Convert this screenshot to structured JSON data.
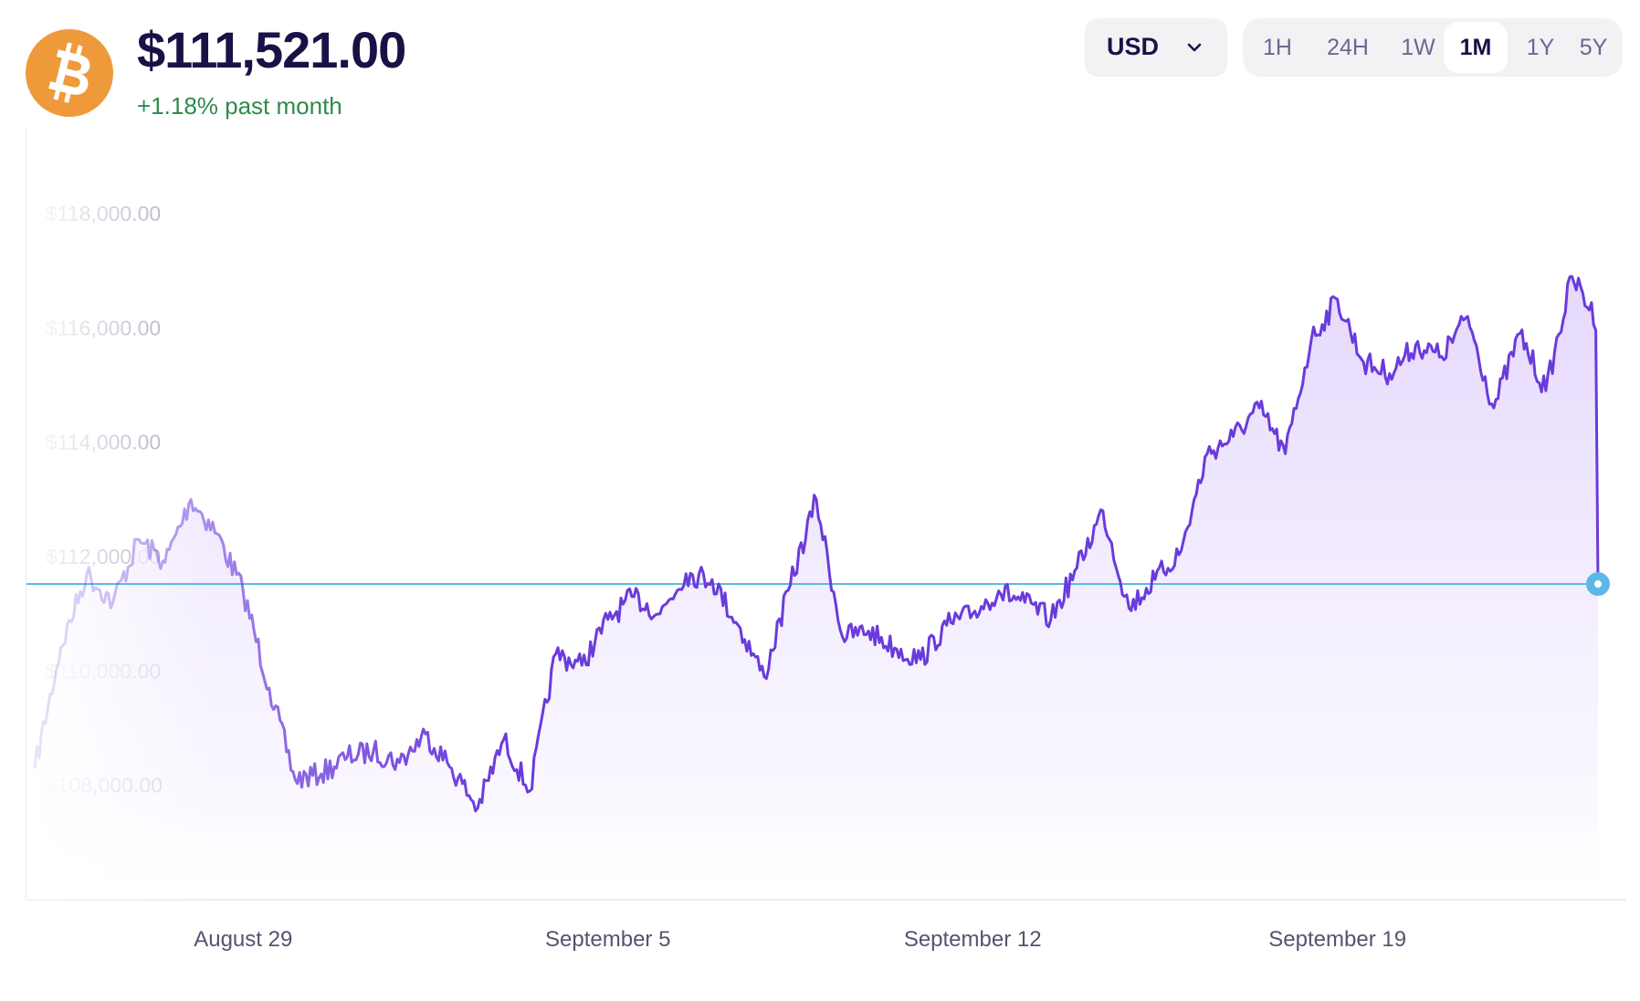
{
  "asset": {
    "icon": "bitcoin-icon",
    "price": "$111,521.00",
    "change": "+1.18% past month",
    "colors": {
      "icon": "#ee9a3a",
      "change": "#2f8a4c"
    }
  },
  "currency": {
    "selected": "USD",
    "icon": "chevron-down-icon"
  },
  "time_range": {
    "options": [
      "1H",
      "24H",
      "1W",
      "1M",
      "1Y",
      "5Y"
    ],
    "selected": "1M"
  },
  "chart_data": {
    "type": "area",
    "title": "",
    "xlabel": "",
    "ylabel": "",
    "x_ticks": [
      "August 29",
      "September 5",
      "September 12",
      "September 19"
    ],
    "y_ticks": [
      "$108,000.00",
      "$110,000.00",
      "$112,000.00",
      "$114,000.00",
      "$116,000.00",
      "$118,000.00"
    ],
    "ylim": [
      106000,
      119500
    ],
    "xlim": [
      "2025-08-25",
      "2025-09-24"
    ],
    "grid": false,
    "colors": {
      "line": "#6a3bdb",
      "fill": "#e8defd",
      "reference": "#5db8e8",
      "marker": "#5db8e8"
    },
    "series": [
      {
        "x": [
          "2025-08-25",
          "2025-08-25 12:00",
          "2025-08-26",
          "2025-08-26 12:00",
          "2025-08-27",
          "2025-08-27 12:00",
          "2025-08-28",
          "2025-08-28 12:00",
          "2025-08-29",
          "2025-08-29 12:00",
          "2025-08-30",
          "2025-08-30 12:00",
          "2025-08-31",
          "2025-08-31 12:00",
          "2025-09-01",
          "2025-09-01 12:00",
          "2025-09-02",
          "2025-09-02 12:00",
          "2025-09-03",
          "2025-09-03 12:00",
          "2025-09-04",
          "2025-09-04 12:00",
          "2025-09-05",
          "2025-09-05 12:00",
          "2025-09-06",
          "2025-09-06 12:00",
          "2025-09-07",
          "2025-09-07 12:00",
          "2025-09-08",
          "2025-09-08 12:00",
          "2025-09-09",
          "2025-09-09 12:00",
          "2025-09-10",
          "2025-09-10 12:00",
          "2025-09-11",
          "2025-09-11 12:00",
          "2025-09-12",
          "2025-09-12 12:00",
          "2025-09-13",
          "2025-09-13 12:00",
          "2025-09-14",
          "2025-09-14 12:00",
          "2025-09-15",
          "2025-09-15 12:00",
          "2025-09-16",
          "2025-09-16 12:00",
          "2025-09-17",
          "2025-09-17 12:00",
          "2025-09-18",
          "2025-09-18 12:00",
          "2025-09-19",
          "2025-09-19 12:00",
          "2025-09-20",
          "2025-09-20 12:00",
          "2025-09-21",
          "2025-09-21 12:00",
          "2025-09-22",
          "2025-09-22 12:00",
          "2025-09-23",
          "2025-09-23 12:00",
          "2025-09-24"
        ],
        "values": [
          108300,
          110400,
          111700,
          111200,
          112300,
          111900,
          113000,
          112400,
          111400,
          109700,
          108100,
          108200,
          108500,
          108600,
          108400,
          108900,
          108300,
          107600,
          108800,
          107900,
          110300,
          110100,
          110900,
          111300,
          111000,
          111700,
          111600,
          110800,
          109900,
          111500,
          113000,
          110600,
          110700,
          110400,
          110200,
          110800,
          111000,
          111400,
          111200,
          110900,
          111800,
          112800,
          111100,
          111600,
          112100,
          113800,
          114100,
          114600,
          113800,
          115800,
          116500,
          115400,
          115200,
          115700,
          115500,
          116200,
          114600,
          115900,
          114900,
          116900,
          116100
        ]
      }
    ],
    "current_value": 111521
  }
}
